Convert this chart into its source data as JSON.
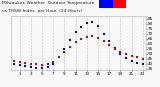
{
  "background_color": "#f8f8f8",
  "grid_color": "#bbbbbb",
  "hours": [
    0,
    1,
    2,
    3,
    4,
    5,
    6,
    7,
    8,
    9,
    10,
    11,
    12,
    13,
    14,
    15,
    16,
    17,
    18,
    19,
    20,
    21,
    22,
    23
  ],
  "temp_red": [
    43,
    42,
    41,
    40,
    40,
    39,
    40,
    42,
    47,
    52,
    57,
    62,
    65,
    67,
    68,
    66,
    63,
    59,
    55,
    52,
    50,
    48,
    47,
    45
  ],
  "thsw_blue": [
    40,
    39,
    38,
    37,
    36,
    36,
    37,
    40,
    47,
    55,
    64,
    72,
    77,
    81,
    82,
    78,
    70,
    63,
    56,
    50,
    46,
    43,
    41,
    40
  ],
  "ylim": [
    34,
    88
  ],
  "xlim": [
    -0.5,
    23.5
  ],
  "ytick_vals": [
    35,
    40,
    45,
    50,
    55,
    60,
    65,
    70,
    75,
    80,
    85
  ],
  "ytick_labels": [
    "35",
    "40",
    "45",
    "50",
    "55",
    "60",
    "65",
    "70",
    "75",
    "80",
    "85"
  ],
  "xtick_vals": [
    1,
    3,
    5,
    7,
    9,
    11,
    13,
    15,
    17,
    19,
    21,
    23
  ],
  "xtick_labels": [
    "1",
    "3",
    "5",
    "7",
    "9",
    "11",
    "13",
    "15",
    "17",
    "19",
    "21",
    "23"
  ],
  "dot_size_red": 2,
  "dot_size_blue": 2,
  "red_color": "#cc0000",
  "blue_color": "#0000cc",
  "legend_blue_color": "#0000ff",
  "legend_red_color": "#ff0000",
  "title_text": "Milwaukee Weather  Outdoor Temperature",
  "title_text2": "vs THSW Index  per Hour  (24 Hours)",
  "title_fontsize": 3.2,
  "tick_fontsize": 3.0
}
